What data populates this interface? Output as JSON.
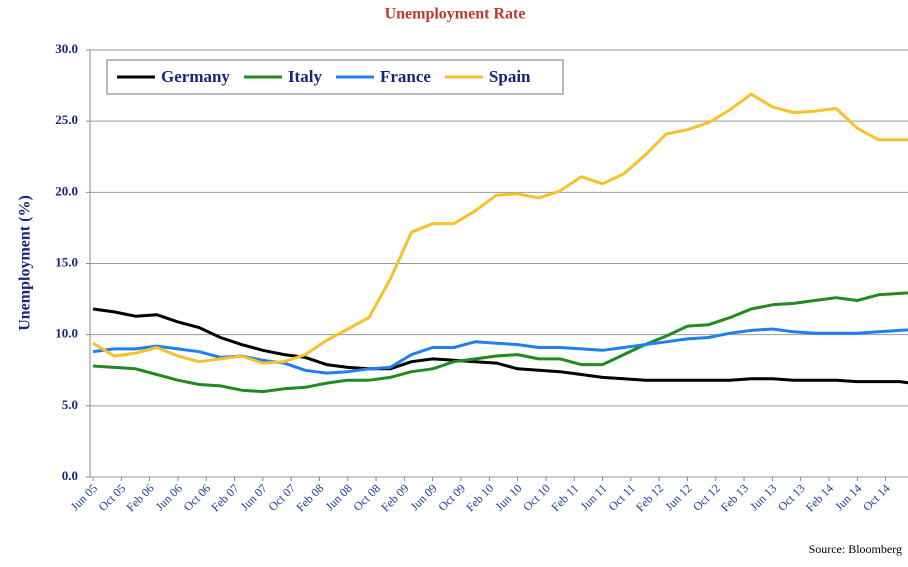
{
  "chart_data": {
    "type": "line",
    "title": "Unemployment Rate",
    "ylabel": "Unemployment (%)",
    "source": "Source: Bloomberg",
    "x": [
      "Jun 05",
      "Sep 05",
      "Dec 05",
      "Mar 06",
      "Jun 06",
      "Sep 06",
      "Dec 06",
      "Mar 07",
      "Jun 07",
      "Sep 07",
      "Dec 07",
      "Mar 08",
      "Jun 08",
      "Sep 08",
      "Dec 08",
      "Mar 09",
      "Jun 09",
      "Sep 09",
      "Dec 09",
      "Mar 10",
      "Jun 10",
      "Sep 10",
      "Dec 10",
      "Mar 11",
      "Jun 11",
      "Sep 11",
      "Dec 11",
      "Mar 12",
      "Jun 12",
      "Sep 12",
      "Dec 12",
      "Mar 13",
      "Jun 13",
      "Sep 13",
      "Dec 13",
      "Mar 14",
      "Jun 14",
      "Sep 14",
      "Dec 14",
      "Mar 15"
    ],
    "series": [
      {
        "name": "Germany",
        "color": "#000000",
        "values": [
          11.8,
          11.6,
          11.3,
          11.4,
          10.9,
          10.5,
          9.8,
          9.3,
          8.9,
          8.6,
          8.4,
          7.9,
          7.7,
          7.6,
          7.6,
          8.1,
          8.3,
          8.2,
          8.1,
          8.0,
          7.6,
          7.5,
          7.4,
          7.2,
          7.0,
          6.9,
          6.8,
          6.8,
          6.8,
          6.8,
          6.8,
          6.9,
          6.9,
          6.8,
          6.8,
          6.8,
          6.7,
          6.7,
          6.7,
          6.5
        ]
      },
      {
        "name": "Italy",
        "color": "#1e8c1e",
        "values": [
          7.8,
          7.7,
          7.6,
          7.2,
          6.8,
          6.5,
          6.4,
          6.1,
          6.0,
          6.2,
          6.3,
          6.6,
          6.8,
          6.8,
          7.0,
          7.4,
          7.6,
          8.1,
          8.3,
          8.5,
          8.6,
          8.3,
          8.3,
          7.9,
          7.9,
          8.6,
          9.3,
          9.9,
          10.6,
          10.7,
          11.2,
          11.8,
          12.1,
          12.2,
          12.4,
          12.6,
          12.4,
          12.8,
          12.9,
          13.0
        ]
      },
      {
        "name": "France",
        "color": "#1f7ff0",
        "values": [
          8.8,
          9.0,
          9.0,
          9.2,
          9.0,
          8.8,
          8.4,
          8.5,
          8.2,
          8.0,
          7.5,
          7.3,
          7.4,
          7.6,
          7.7,
          8.6,
          9.1,
          9.1,
          9.5,
          9.4,
          9.3,
          9.1,
          9.1,
          9.0,
          8.9,
          9.1,
          9.3,
          9.5,
          9.7,
          9.8,
          10.1,
          10.3,
          10.4,
          10.2,
          10.1,
          10.1,
          10.1,
          10.2,
          10.3,
          10.4
        ]
      },
      {
        "name": "Spain",
        "color": "#f9c02a",
        "values": [
          9.4,
          8.5,
          8.7,
          9.1,
          8.5,
          8.1,
          8.3,
          8.5,
          8.0,
          8.1,
          8.6,
          9.6,
          10.4,
          11.2,
          13.9,
          17.2,
          17.8,
          17.8,
          18.7,
          19.8,
          19.9,
          19.6,
          20.1,
          21.1,
          20.6,
          21.3,
          22.6,
          24.1,
          24.4,
          24.9,
          25.8,
          26.9,
          26.0,
          25.6,
          25.7,
          25.9,
          24.5,
          23.7,
          23.7,
          23.7
        ]
      }
    ],
    "xticks": [
      "Jun 05",
      "Oct 05",
      "Feb 06",
      "Jun 06",
      "Oct 06",
      "Feb 07",
      "Jun 07",
      "Oct 07",
      "Feb 08",
      "Jun 08",
      "Oct 08",
      "Feb 09",
      "Jun 09",
      "Oct 09",
      "Feb 10",
      "Jun 10",
      "Oct 10",
      "Feb 11",
      "Jun 11",
      "Oct 11",
      "Feb 12",
      "Jun 12",
      "Oct 12",
      "Feb 13",
      "Jun 13",
      "Oct 13",
      "Feb 14",
      "Jun 14",
      "Oct 14"
    ],
    "ylim": [
      0,
      30
    ],
    "yticks": [
      {
        "value": 0,
        "label": "0.0"
      },
      {
        "value": 5,
        "label": "5.0"
      },
      {
        "value": 10,
        "label": "10.0"
      },
      {
        "value": 15,
        "label": "15.0"
      },
      {
        "value": 20,
        "label": "20.0"
      },
      {
        "value": 25,
        "label": "25.0"
      },
      {
        "value": 30,
        "label": "30.0"
      }
    ],
    "grid": true,
    "legend": "top-left"
  }
}
